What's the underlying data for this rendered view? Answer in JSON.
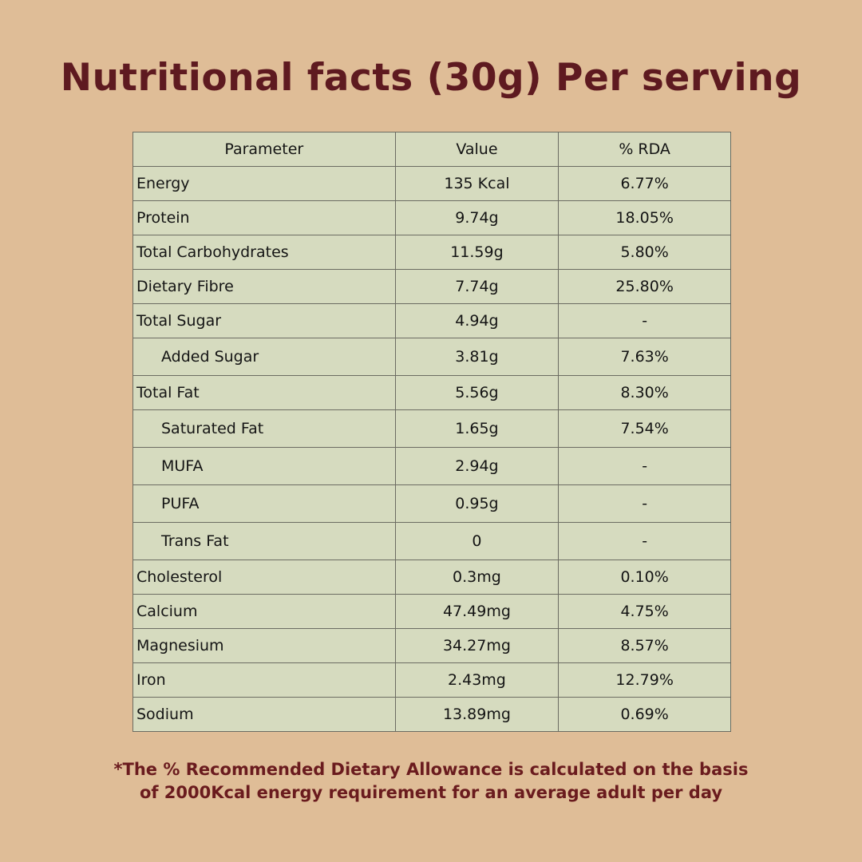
{
  "title": "Nutritional facts (30g) Per serving",
  "table": {
    "headers": [
      "Parameter",
      "Value",
      "% RDA"
    ],
    "rows": [
      {
        "parameter": "Energy",
        "value": "135 Kcal",
        "rda": "6.77%"
      },
      {
        "parameter": "Protein",
        "value": "9.74g",
        "rda": "18.05%"
      },
      {
        "parameter": "Total Carbohydrates",
        "value": "11.59g",
        "rda": "5.80%"
      },
      {
        "parameter": "Dietary Fibre",
        "value": "7.74g",
        "rda": "25.80%"
      },
      {
        "parameter": "Total Sugar",
        "value": "4.94g",
        "rda": "-"
      },
      {
        "parameter": "Added Sugar",
        "value": "3.81g",
        "rda": "7.63%"
      },
      {
        "parameter": "Total Fat",
        "value": "5.56g",
        "rda": "8.30%"
      },
      {
        "parameter": "Saturated Fat",
        "value": "1.65g",
        "rda": "7.54%"
      },
      {
        "parameter": "MUFA",
        "value": "2.94g",
        "rda": "-"
      },
      {
        "parameter": "PUFA",
        "value": "0.95g",
        "rda": "-"
      },
      {
        "parameter": "Trans Fat",
        "value": "0",
        "rda": "-"
      },
      {
        "parameter": "Cholesterol",
        "value": "0.3mg",
        "rda": "0.10%"
      },
      {
        "parameter": "Calcium",
        "value": "47.49mg",
        "rda": "4.75%"
      },
      {
        "parameter": "Magnesium",
        "value": "34.27mg",
        "rda": "8.57%"
      },
      {
        "parameter": "Iron",
        "value": "2.43mg",
        "rda": "12.79%"
      },
      {
        "parameter": "Sodium",
        "value": "13.89mg",
        "rda": "0.69%"
      }
    ]
  },
  "footnote": {
    "line1": "*The % Recommended Dietary Allowance is calculated on the basis",
    "line2": "of 2000Kcal energy requirement for an average adult per day"
  },
  "colors": {
    "background": "#dfbd97",
    "title": "#5e1a20",
    "table_fill": "#d6dbbf",
    "table_border": "#6c6c62",
    "footnote": "#6a1b1e"
  }
}
